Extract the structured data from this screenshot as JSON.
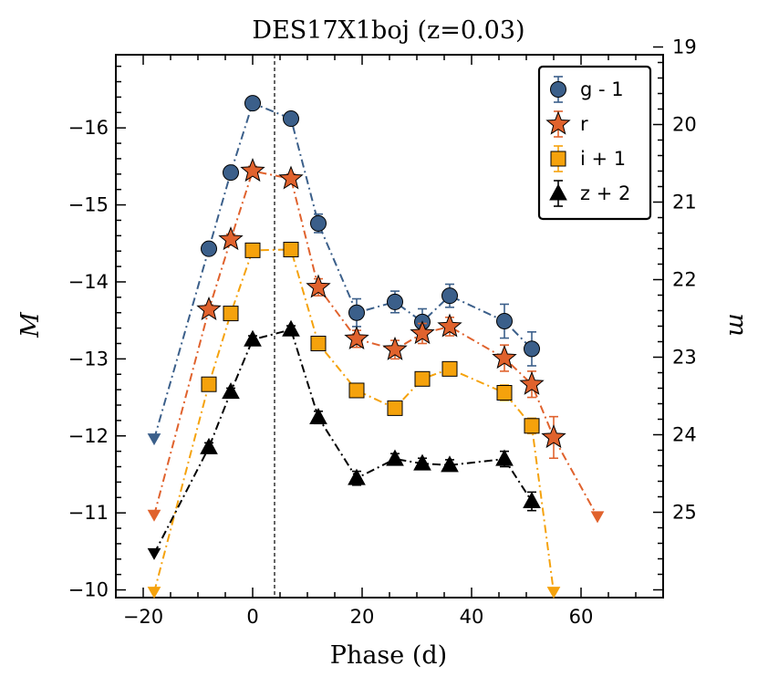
{
  "chart_data": {
    "type": "scatter",
    "title": "DES17X1boj (z=0.03)",
    "xlabel": "Phase (d)",
    "ylabel": "M",
    "ylabel_right": "m",
    "xlim": [
      -25,
      75
    ],
    "ylim": [
      -9.9,
      -16.95
    ],
    "ylim_right": [
      19.1,
      26.1
    ],
    "y_inverted": true,
    "x_ticks": [
      -20,
      0,
      20,
      40,
      60
    ],
    "y_ticks": [
      -10,
      -11,
      -12,
      -13,
      -14,
      -15,
      -16
    ],
    "y_ticks_right": [
      19,
      20,
      21,
      22,
      23,
      24,
      25
    ],
    "x_tick_labels": [
      "−20",
      "0",
      "20",
      "40",
      "60"
    ],
    "y_tick_labels": [
      "−10",
      "−11",
      "−12",
      "−13",
      "−14",
      "−15",
      "−16"
    ],
    "y_tick_labels_right": [
      "19",
      "20",
      "21",
      "22",
      "23",
      "24",
      "25"
    ],
    "vline_x": 4,
    "legend_position": "top-right",
    "series": [
      {
        "name": "g - 1",
        "color": "#3b5f8a",
        "marker": "circle",
        "points": [
          {
            "x": -18,
            "y": -11.96,
            "err": 0,
            "limit": true
          },
          {
            "x": -8,
            "y": -14.43,
            "err": 0.07
          },
          {
            "x": -4,
            "y": -15.42,
            "err": 0.05
          },
          {
            "x": 0,
            "y": -16.32,
            "err": 0.06
          },
          {
            "x": 7,
            "y": -16.12,
            "err": 0.06
          },
          {
            "x": 12,
            "y": -14.76,
            "err": 0.12
          },
          {
            "x": 19,
            "y": -13.6,
            "err": 0.18
          },
          {
            "x": 26,
            "y": -13.74,
            "err": 0.14
          },
          {
            "x": 31,
            "y": -13.48,
            "err": 0.17
          },
          {
            "x": 36,
            "y": -13.82,
            "err": 0.15
          },
          {
            "x": 46,
            "y": -13.49,
            "err": 0.22
          },
          {
            "x": 51,
            "y": -13.13,
            "err": 0.22
          }
        ]
      },
      {
        "name": "r",
        "color": "#e0622d",
        "marker": "star",
        "points": [
          {
            "x": -18,
            "y": -10.97,
            "err": 0,
            "limit": true
          },
          {
            "x": -8,
            "y": -13.64,
            "err": 0.06
          },
          {
            "x": -4,
            "y": -14.55,
            "err": 0.07
          },
          {
            "x": 0,
            "y": -15.44,
            "err": 0.06
          },
          {
            "x": 7,
            "y": -15.34,
            "err": 0.06
          },
          {
            "x": 12,
            "y": -13.93,
            "err": 0.11
          },
          {
            "x": 19,
            "y": -13.26,
            "err": 0.11
          },
          {
            "x": 26,
            "y": -13.12,
            "err": 0.12
          },
          {
            "x": 31,
            "y": -13.33,
            "err": 0.13
          },
          {
            "x": 36,
            "y": -13.42,
            "err": 0.12
          },
          {
            "x": 46,
            "y": -13.01,
            "err": 0.17
          },
          {
            "x": 51,
            "y": -12.67,
            "err": 0.17
          },
          {
            "x": 55,
            "y": -11.98,
            "err": 0.27
          },
          {
            "x": 63,
            "y": -10.95,
            "err": 0,
            "limit": true
          }
        ]
      },
      {
        "name": "i + 1",
        "color": "#f5a20c",
        "marker": "square",
        "points": [
          {
            "x": -18,
            "y": -9.97,
            "err": 0,
            "limit": true
          },
          {
            "x": -8,
            "y": -12.67,
            "err": 0.05
          },
          {
            "x": -4,
            "y": -13.59,
            "err": 0.05
          },
          {
            "x": 0,
            "y": -14.41,
            "err": 0.05
          },
          {
            "x": 7,
            "y": -14.42,
            "err": 0.05
          },
          {
            "x": 12,
            "y": -13.2,
            "err": 0.07
          },
          {
            "x": 19,
            "y": -12.59,
            "err": 0.08
          },
          {
            "x": 26,
            "y": -12.36,
            "err": 0.08
          },
          {
            "x": 31,
            "y": -12.74,
            "err": 0.08
          },
          {
            "x": 36,
            "y": -12.87,
            "err": 0.08
          },
          {
            "x": 46,
            "y": -12.56,
            "err": 0.1
          },
          {
            "x": 51,
            "y": -12.13,
            "err": 0.1
          },
          {
            "x": 55,
            "y": -9.97,
            "err": 0,
            "limit": true
          }
        ]
      },
      {
        "name": "z + 2",
        "color": "#000000",
        "marker": "triangle",
        "points": [
          {
            "x": -18,
            "y": -10.47,
            "err": 0,
            "limit": true
          },
          {
            "x": -8,
            "y": -11.85,
            "err": 0.06
          },
          {
            "x": -4,
            "y": -12.57,
            "err": 0.05
          },
          {
            "x": 0,
            "y": -13.25,
            "err": 0.05
          },
          {
            "x": 7,
            "y": -13.38,
            "err": 0.05
          },
          {
            "x": 12,
            "y": -12.24,
            "err": 0.08
          },
          {
            "x": 19,
            "y": -11.45,
            "err": 0.09
          },
          {
            "x": 26,
            "y": -11.7,
            "err": 0.07
          },
          {
            "x": 31,
            "y": -11.64,
            "err": 0.07
          },
          {
            "x": 36,
            "y": -11.62,
            "err": 0.07
          },
          {
            "x": 46,
            "y": -11.7,
            "err": 0.1
          },
          {
            "x": 51,
            "y": -11.15,
            "err": 0.12
          }
        ]
      }
    ]
  }
}
